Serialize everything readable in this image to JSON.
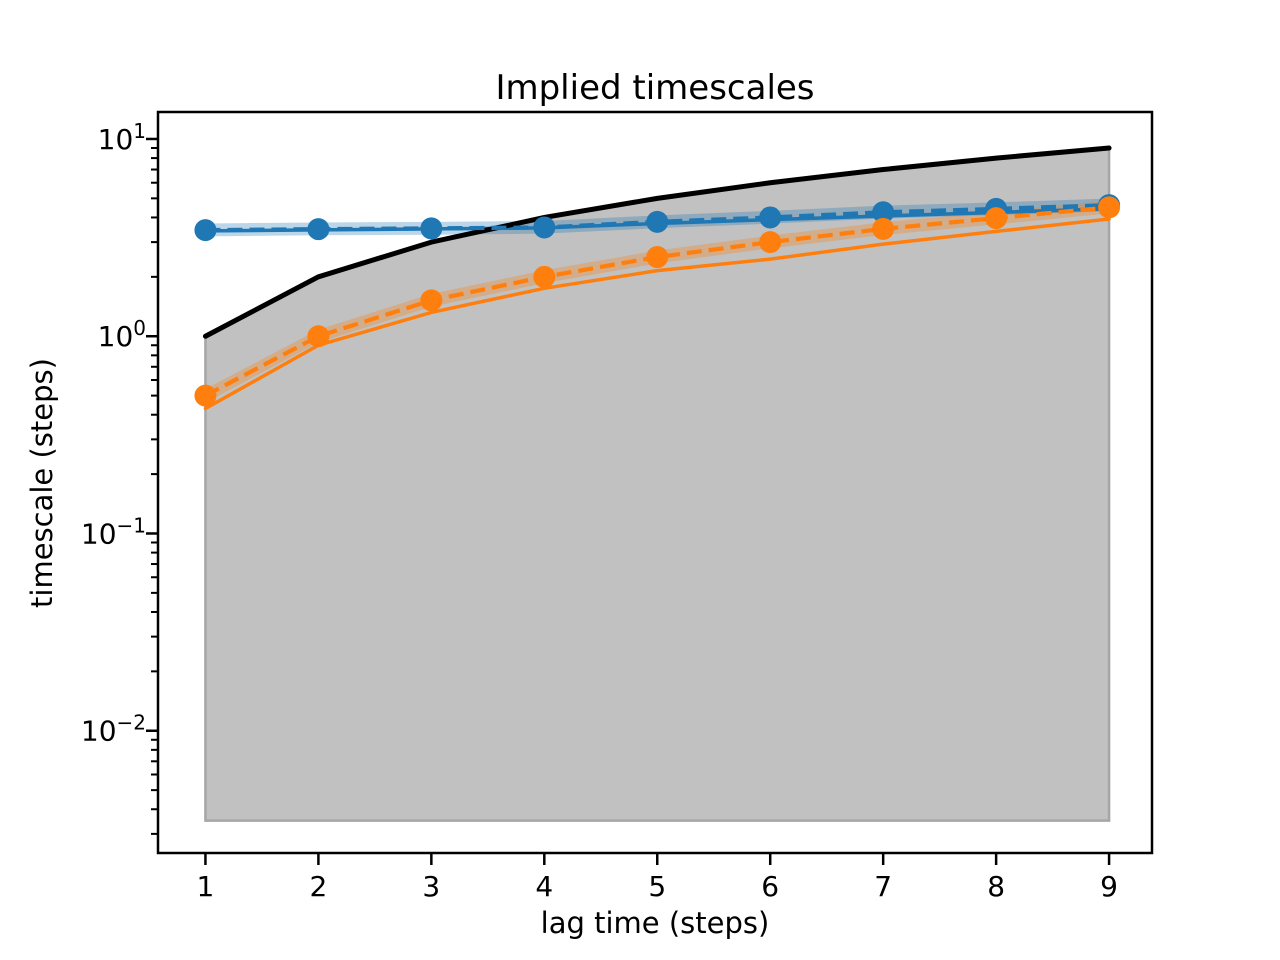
{
  "figure": {
    "background": "#ffffff"
  },
  "chart_data": {
    "type": "line",
    "title": "Implied timescales",
    "xlabel": "lag time (steps)",
    "ylabel": "timescale (steps)",
    "x_scale": "linear",
    "y_scale": "log",
    "grid": false,
    "legend": null,
    "xlim": [
      0.58,
      9.38
    ],
    "ylim": [
      0.0024,
      13.7
    ],
    "x_ticks": [
      1,
      2,
      3,
      4,
      5,
      6,
      7,
      8,
      9
    ],
    "y_ticks": [
      {
        "value": 10,
        "label_base": "10",
        "label_exponent": "1"
      },
      {
        "value": 1,
        "label_base": "10",
        "label_exponent": "0"
      },
      {
        "value": 0.1,
        "label_base": "10",
        "label_exponent": "−1"
      },
      {
        "value": 0.01,
        "label_base": "10",
        "label_exponent": "−2"
      }
    ],
    "x": [
      1,
      2,
      3,
      4,
      5,
      6,
      7,
      8,
      9
    ],
    "reference_line": {
      "id": "lag-time-boundary",
      "name": "timescale = lag time boundary",
      "color": "#000000",
      "values": [
        1,
        2,
        3,
        4,
        5,
        6,
        7,
        8,
        9
      ]
    },
    "shaded_region": {
      "id": "below-lag-time-region",
      "name": "region below lag time boundary",
      "fill": "#c1c1c1",
      "edge": "#a6a6a6",
      "upper": [
        1,
        2,
        3,
        4,
        5,
        6,
        7,
        8,
        9
      ],
      "bottom": 0.0035
    },
    "series": [
      {
        "id": "process1-solid",
        "name": "process 1 (blue, solid)",
        "color": "#1f77b4",
        "line_style": "solid",
        "marker": null,
        "values": [
          3.42,
          3.46,
          3.5,
          3.54,
          3.73,
          3.9,
          4.07,
          4.24,
          4.43
        ]
      },
      {
        "id": "process2-solid",
        "name": "process 2 (orange, solid)",
        "color": "#ff7f0e",
        "line_style": "solid",
        "marker": null,
        "values": [
          0.43,
          0.9,
          1.32,
          1.75,
          2.15,
          2.46,
          2.93,
          3.4,
          3.93
        ]
      },
      {
        "id": "process1-estimate",
        "name": "process 1 estimate (blue, dashed, circle markers)",
        "color": "#1f77b4",
        "line_style": "dashed",
        "marker": "circle",
        "values": [
          3.45,
          3.49,
          3.52,
          3.56,
          3.8,
          4.0,
          4.25,
          4.42,
          4.62
        ]
      },
      {
        "id": "process2-estimate",
        "name": "process 2 estimate (orange, dashed, circle markers)",
        "color": "#ff7f0e",
        "line_style": "dashed",
        "marker": "circle",
        "values": [
          0.5,
          1.0,
          1.52,
          2.0,
          2.52,
          3.0,
          3.5,
          3.97,
          4.5
        ]
      }
    ],
    "bands": [
      {
        "id": "process1-confidence-band",
        "name": "process 1 confidence interval",
        "color": "#1f77b4",
        "alpha": 0.3,
        "lower": [
          3.21,
          3.25,
          3.27,
          3.31,
          3.53,
          3.72,
          3.95,
          4.11,
          4.3
        ],
        "upper": [
          3.73,
          3.77,
          3.8,
          3.84,
          4.1,
          4.32,
          4.59,
          4.77,
          4.99
        ]
      },
      {
        "id": "process2-confidence-band",
        "name": "process 2 confidence interval",
        "color": "#ff7f0e",
        "alpha": 0.3,
        "lower": [
          0.46,
          0.93,
          1.41,
          1.86,
          2.34,
          2.79,
          3.26,
          3.69,
          4.19
        ],
        "upper": [
          0.54,
          1.08,
          1.64,
          2.16,
          2.72,
          3.24,
          3.78,
          4.29,
          4.86
        ]
      }
    ]
  }
}
